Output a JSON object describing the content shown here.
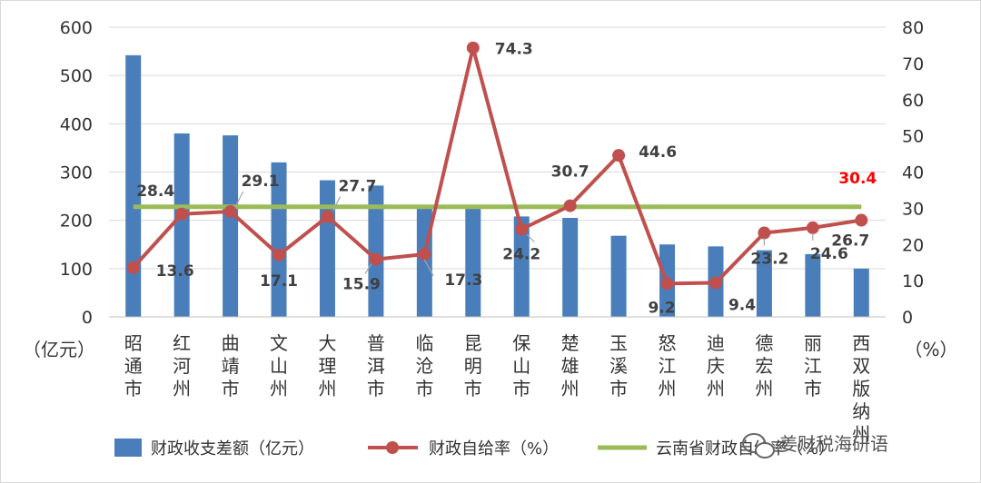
{
  "chart_data": {
    "type": "bar",
    "categories": [
      "昭通市",
      "红河州",
      "曲靖市",
      "文山州",
      "大理州",
      "普洱市",
      "临沧市",
      "昆明市",
      "保山市",
      "楚雄州",
      "玉溪市",
      "怒江州",
      "迪庆州",
      "德宏州",
      "丽江市",
      "西双版纳州"
    ],
    "series": [
      {
        "name": "财政收支差额（亿元）",
        "type": "bar",
        "axis": "left",
        "color": "#4a7ebb",
        "values": [
          542,
          380,
          376,
          320,
          283,
          272,
          228,
          228,
          208,
          205,
          168,
          150,
          146,
          138,
          130,
          100
        ]
      },
      {
        "name": "财政自给率（%）",
        "type": "line",
        "axis": "right",
        "color": "#c0504d",
        "values": [
          13.6,
          28.4,
          29.1,
          17.1,
          27.7,
          15.9,
          17.3,
          74.3,
          24.2,
          30.7,
          44.6,
          9.2,
          9.4,
          23.2,
          24.6,
          26.7
        ]
      },
      {
        "name": "云南省财政自给率（%）",
        "type": "line",
        "axis": "right",
        "color": "#9bbb59",
        "values": [
          30.4,
          30.4,
          30.4,
          30.4,
          30.4,
          30.4,
          30.4,
          30.4,
          30.4,
          30.4,
          30.4,
          30.4,
          30.4,
          30.4,
          30.4,
          30.4
        ]
      }
    ],
    "data_labels": [
      "13.6",
      "28.4",
      "29.1",
      "17.1",
      "27.7",
      "15.9",
      "17.3",
      "74.3",
      "24.2",
      "30.7",
      "44.6",
      "9.2",
      "9.4",
      "23.2",
      "24.6",
      "26.7"
    ],
    "province_label": "30.4",
    "province_label_color": "#ff0000",
    "left_axis": {
      "unit": "（亿元）",
      "range": [
        0,
        600
      ],
      "ticks": [
        "0",
        "100",
        "200",
        "300",
        "400",
        "500",
        "600"
      ]
    },
    "right_axis": {
      "unit": "（%）",
      "range": [
        0,
        80
      ],
      "ticks": [
        "0",
        "10",
        "20",
        "30",
        "40",
        "50",
        "60",
        "70",
        "80"
      ]
    },
    "grid": true,
    "legend_position": "bottom"
  },
  "watermark": "姜财税海研语"
}
